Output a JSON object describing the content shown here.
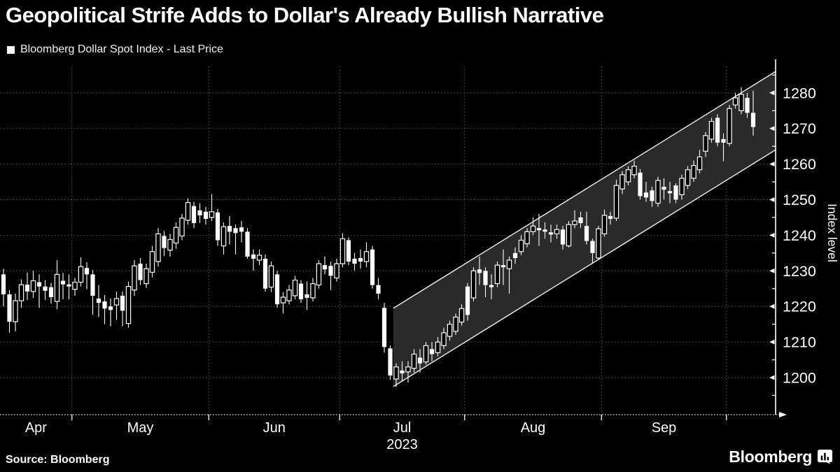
{
  "meta": {
    "title": "Geopolitical Strife Adds to Dollar's Already Bullish Narrative",
    "legend_label": "Bloomberg Dollar Spot Index - Last Price",
    "source_label": "Source: Bloomberg",
    "brand": "Bloomberg"
  },
  "chart_data": {
    "type": "candlestick",
    "title": "Geopolitical Strife Adds to Dollar's Already Bullish Narrative",
    "series_name": "Bloomberg Dollar Spot Index - Last Price",
    "ylabel": "Index level",
    "ylim": [
      1193,
      1288
    ],
    "grid": true,
    "y_axis": {
      "ticks": [
        1200,
        1210,
        1220,
        1230,
        1240,
        1250,
        1260,
        1270,
        1280
      ],
      "minor_step": 5,
      "label": "Index level",
      "side": "right"
    },
    "x_axis": {
      "year_label": "2023",
      "months": [
        {
          "label": "Apr",
          "count": 12,
          "year": ""
        },
        {
          "label": "May",
          "count": 23,
          "year": ""
        },
        {
          "label": "Jun",
          "count": 22,
          "year": ""
        },
        {
          "label": "Jul",
          "count": 21,
          "year": "2023"
        },
        {
          "label": "Aug",
          "count": 23,
          "year": ""
        },
        {
          "label": "Sep",
          "count": 21,
          "year": ""
        },
        {
          "label": "",
          "count": 5,
          "year": ""
        }
      ]
    },
    "channel": {
      "start_index": 66,
      "upper_start": 1219.5,
      "lower_start": 1197.5,
      "upper_end": 1286.0,
      "lower_end": 1264.0
    },
    "candles": [
      [
        1229.0,
        1230.6,
        1220.0,
        1223.4
      ],
      [
        1223.4,
        1224.6,
        1212.6,
        1215.7
      ],
      [
        1215.7,
        1223.6,
        1213.0,
        1221.6
      ],
      [
        1221.6,
        1227.6,
        1219.6,
        1226.1
      ],
      [
        1226.1,
        1229.5,
        1221.8,
        1224.2
      ],
      [
        1224.2,
        1230.0,
        1222.4,
        1227.2
      ],
      [
        1226.8,
        1229.0,
        1219.6,
        1225.6
      ],
      [
        1225.6,
        1227.4,
        1221.8,
        1224.4
      ],
      [
        1225.4,
        1226.6,
        1220.8,
        1222.6
      ],
      [
        1221.4,
        1233.0,
        1219.2,
        1229.0
      ],
      [
        1227.2,
        1229.4,
        1222.0,
        1226.2
      ],
      [
        1226.2,
        1229.0,
        1222.0,
        1225.6
      ],
      [
        1224.8,
        1228.0,
        1223.0,
        1226.8
      ],
      [
        1226.8,
        1233.8,
        1225.6,
        1231.2
      ],
      [
        1230.8,
        1232.4,
        1224.8,
        1229.0
      ],
      [
        1229.0,
        1230.2,
        1217.6,
        1223.0
      ],
      [
        1222.2,
        1226.0,
        1217.0,
        1221.0
      ],
      [
        1221.4,
        1223.2,
        1215.0,
        1219.4
      ],
      [
        1220.0,
        1222.2,
        1214.4,
        1219.0
      ],
      [
        1220.4,
        1224.2,
        1216.2,
        1222.2
      ],
      [
        1223.0,
        1224.2,
        1214.4,
        1218.8
      ],
      [
        1215.2,
        1227.0,
        1214.0,
        1225.6
      ],
      [
        1224.6,
        1233.0,
        1223.0,
        1231.4
      ],
      [
        1232.0,
        1233.6,
        1226.0,
        1227.4
      ],
      [
        1226.4,
        1232.0,
        1225.2,
        1230.6
      ],
      [
        1229.6,
        1237.0,
        1228.2,
        1235.4
      ],
      [
        1232.6,
        1242.0,
        1231.2,
        1240.4
      ],
      [
        1239.8,
        1241.2,
        1234.2,
        1236.4
      ],
      [
        1235.8,
        1240.4,
        1234.0,
        1238.8
      ],
      [
        1237.8,
        1243.6,
        1236.2,
        1242.2
      ],
      [
        1239.8,
        1246.0,
        1238.6,
        1244.8
      ],
      [
        1244.2,
        1250.4,
        1243.0,
        1249.2
      ],
      [
        1248.2,
        1249.4,
        1242.0,
        1243.4
      ],
      [
        1247.0,
        1249.0,
        1243.4,
        1245.6
      ],
      [
        1246.6,
        1248.0,
        1243.0,
        1244.6
      ],
      [
        1245.0,
        1251.6,
        1244.0,
        1246.6
      ],
      [
        1246.4,
        1247.4,
        1237.0,
        1238.6
      ],
      [
        1237.0,
        1243.6,
        1234.6,
        1242.4
      ],
      [
        1242.6,
        1245.4,
        1237.4,
        1241.0
      ],
      [
        1242.0,
        1243.0,
        1234.6,
        1240.6
      ],
      [
        1242.2,
        1244.0,
        1238.0,
        1241.0
      ],
      [
        1241.0,
        1242.0,
        1233.4,
        1234.0
      ],
      [
        1234.6,
        1236.0,
        1230.0,
        1233.4
      ],
      [
        1233.0,
        1236.0,
        1231.6,
        1234.4
      ],
      [
        1233.4,
        1234.6,
        1224.2,
        1225.0
      ],
      [
        1225.4,
        1232.6,
        1224.0,
        1231.4
      ],
      [
        1229.0,
        1230.0,
        1219.6,
        1220.6
      ],
      [
        1221.0,
        1224.0,
        1218.0,
        1222.6
      ],
      [
        1221.6,
        1226.0,
        1220.6,
        1224.6
      ],
      [
        1223.0,
        1228.6,
        1222.0,
        1227.4
      ],
      [
        1226.4,
        1227.4,
        1221.0,
        1222.0
      ],
      [
        1223.4,
        1227.0,
        1219.0,
        1222.4
      ],
      [
        1222.4,
        1228.0,
        1221.4,
        1226.4
      ],
      [
        1226.0,
        1233.0,
        1225.0,
        1232.0
      ],
      [
        1231.6,
        1234.0,
        1229.0,
        1230.4
      ],
      [
        1231.4,
        1232.6,
        1224.6,
        1228.6
      ],
      [
        1228.0,
        1233.4,
        1227.0,
        1232.0
      ],
      [
        1232.0,
        1240.6,
        1231.0,
        1239.0
      ],
      [
        1238.6,
        1239.4,
        1231.6,
        1232.6
      ],
      [
        1233.4,
        1235.0,
        1230.0,
        1232.0
      ],
      [
        1233.6,
        1236.0,
        1230.6,
        1232.6
      ],
      [
        1232.6,
        1238.0,
        1231.0,
        1235.4
      ],
      [
        1236.0,
        1237.0,
        1225.0,
        1226.0
      ],
      [
        1226.0,
        1228.0,
        1222.0,
        1223.6
      ],
      [
        1219.6,
        1221.0,
        1207.0,
        1208.6
      ],
      [
        1208.2,
        1209.0,
        1199.4,
        1200.6
      ],
      [
        1199.6,
        1204.0,
        1197.4,
        1203.0
      ],
      [
        1202.0,
        1204.6,
        1199.0,
        1201.2
      ],
      [
        1201.6,
        1204.6,
        1198.6,
        1203.0
      ],
      [
        1202.6,
        1208.0,
        1201.4,
        1206.6
      ],
      [
        1205.6,
        1208.0,
        1201.4,
        1204.0
      ],
      [
        1204.4,
        1210.0,
        1203.6,
        1209.0
      ],
      [
        1208.0,
        1210.0,
        1204.6,
        1206.6
      ],
      [
        1207.0,
        1211.4,
        1206.0,
        1210.0
      ],
      [
        1209.0,
        1214.0,
        1208.0,
        1212.6
      ],
      [
        1211.6,
        1216.0,
        1210.4,
        1215.0
      ],
      [
        1213.0,
        1218.0,
        1212.0,
        1217.0
      ],
      [
        1215.6,
        1220.6,
        1214.6,
        1219.4
      ],
      [
        1225.6,
        1226.6,
        1216.0,
        1217.6
      ],
      [
        1222.4,
        1231.0,
        1221.4,
        1230.0
      ],
      [
        1230.4,
        1234.0,
        1226.0,
        1229.4
      ],
      [
        1230.0,
        1231.0,
        1222.6,
        1226.0
      ],
      [
        1226.0,
        1229.0,
        1222.0,
        1225.4
      ],
      [
        1226.4,
        1232.6,
        1225.4,
        1231.6
      ],
      [
        1231.6,
        1236.0,
        1226.0,
        1231.0
      ],
      [
        1230.6,
        1234.0,
        1223.6,
        1233.0
      ],
      [
        1235.0,
        1236.6,
        1232.0,
        1233.6
      ],
      [
        1235.4,
        1240.0,
        1234.4,
        1238.6
      ],
      [
        1237.6,
        1242.0,
        1236.6,
        1241.0
      ],
      [
        1241.0,
        1245.0,
        1240.0,
        1242.6
      ],
      [
        1242.0,
        1246.0,
        1237.0,
        1241.4
      ],
      [
        1241.6,
        1243.6,
        1239.0,
        1241.0
      ],
      [
        1240.8,
        1243.0,
        1238.0,
        1240.2
      ],
      [
        1240.4,
        1243.0,
        1239.0,
        1241.6
      ],
      [
        1241.6,
        1242.6,
        1236.0,
        1237.4
      ],
      [
        1237.0,
        1244.0,
        1236.6,
        1243.0
      ],
      [
        1243.0,
        1247.0,
        1242.0,
        1244.0
      ],
      [
        1245.0,
        1246.6,
        1242.0,
        1243.4
      ],
      [
        1242.6,
        1246.6,
        1237.4,
        1238.4
      ],
      [
        1238.4,
        1239.0,
        1232.0,
        1235.0
      ],
      [
        1233.6,
        1242.6,
        1233.0,
        1241.8
      ],
      [
        1240.4,
        1247.2,
        1239.6,
        1245.6
      ],
      [
        1245.4,
        1246.6,
        1243.0,
        1244.6
      ],
      [
        1244.8,
        1255.6,
        1244.0,
        1254.0
      ],
      [
        1253.0,
        1258.0,
        1251.6,
        1257.0
      ],
      [
        1255.0,
        1259.4,
        1254.0,
        1258.4
      ],
      [
        1257.0,
        1261.0,
        1256.0,
        1259.4
      ],
      [
        1257.6,
        1258.6,
        1250.0,
        1251.0
      ],
      [
        1252.0,
        1255.0,
        1249.4,
        1250.6
      ],
      [
        1252.6,
        1253.6,
        1248.0,
        1249.6
      ],
      [
        1249.0,
        1256.4,
        1248.0,
        1255.4
      ],
      [
        1253.6,
        1256.0,
        1250.0,
        1252.8
      ],
      [
        1252.4,
        1255.0,
        1249.0,
        1251.8
      ],
      [
        1254.0,
        1254.6,
        1249.0,
        1250.0
      ],
      [
        1251.4,
        1257.0,
        1250.0,
        1256.0
      ],
      [
        1254.0,
        1259.4,
        1253.0,
        1258.4
      ],
      [
        1256.0,
        1261.0,
        1255.0,
        1259.6
      ],
      [
        1258.4,
        1264.0,
        1257.4,
        1262.0
      ],
      [
        1263.6,
        1269.0,
        1262.0,
        1268.0
      ],
      [
        1267.0,
        1273.0,
        1266.0,
        1272.0
      ],
      [
        1273.0,
        1274.0,
        1265.0,
        1266.0
      ],
      [
        1267.0,
        1268.6,
        1260.8,
        1266.0
      ],
      [
        1265.8,
        1276.6,
        1265.0,
        1275.6
      ],
      [
        1276.6,
        1280.0,
        1275.6,
        1278.6
      ],
      [
        1275.0,
        1281.6,
        1274.0,
        1279.6
      ],
      [
        1278.6,
        1280.0,
        1273.0,
        1274.4
      ],
      [
        1274.4,
        1280.6,
        1268.0,
        1270.4
      ]
    ],
    "style": {
      "background": "#000000",
      "foreground": "#ffffff",
      "grid": "#565656",
      "channel_fill": "#2a2a2a",
      "channel_line": "#ededed",
      "candle_up_fill": "#000000",
      "candle_down_fill": "#ffffff"
    }
  }
}
